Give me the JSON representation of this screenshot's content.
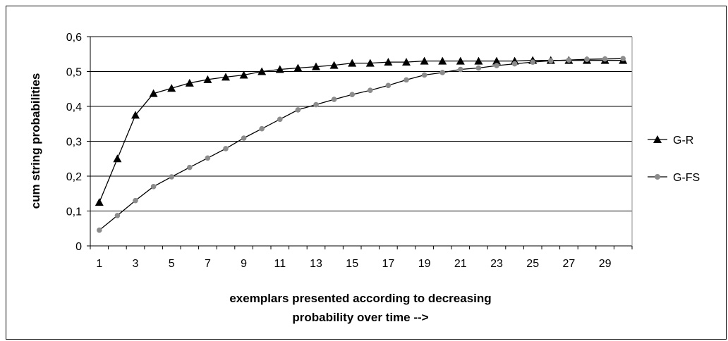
{
  "chart_data": {
    "type": "line",
    "title": "",
    "xlabel_lines": [
      "exemplars presented according to decreasing",
      "probability over time -->"
    ],
    "ylabel": "cum string probabilities",
    "ylim": [
      0,
      0.6
    ],
    "yticks": [
      "0",
      "0,1",
      "0,2",
      "0,3",
      "0,4",
      "0,5",
      "0,6"
    ],
    "x": [
      1,
      2,
      3,
      4,
      5,
      6,
      7,
      8,
      9,
      10,
      11,
      12,
      13,
      14,
      15,
      16,
      17,
      18,
      19,
      20,
      21,
      22,
      23,
      24,
      25,
      26,
      27,
      28,
      29,
      30
    ],
    "xtick_labels": [
      "1",
      "3",
      "5",
      "7",
      "9",
      "11",
      "13",
      "15",
      "17",
      "19",
      "21",
      "23",
      "25",
      "27",
      "29"
    ],
    "grid": "horizontal",
    "legend_position": "right",
    "series": [
      {
        "name": "G-R",
        "marker": "triangle",
        "color": "#000000",
        "values": [
          0.125,
          0.25,
          0.375,
          0.437,
          0.452,
          0.467,
          0.477,
          0.484,
          0.49,
          0.5,
          0.506,
          0.51,
          0.514,
          0.518,
          0.524,
          0.524,
          0.527,
          0.527,
          0.53,
          0.53,
          0.53,
          0.53,
          0.53,
          0.53,
          0.532,
          0.532,
          0.532,
          0.532,
          0.532,
          0.532
        ]
      },
      {
        "name": "G-FS",
        "marker": "circle",
        "color": "#8c8c8c",
        "values": [
          0.045,
          0.087,
          0.13,
          0.17,
          0.198,
          0.225,
          0.252,
          0.279,
          0.309,
          0.336,
          0.363,
          0.39,
          0.405,
          0.42,
          0.434,
          0.446,
          0.46,
          0.476,
          0.49,
          0.497,
          0.506,
          0.51,
          0.517,
          0.522,
          0.527,
          0.531,
          0.533,
          0.535,
          0.536,
          0.537
        ]
      }
    ]
  }
}
